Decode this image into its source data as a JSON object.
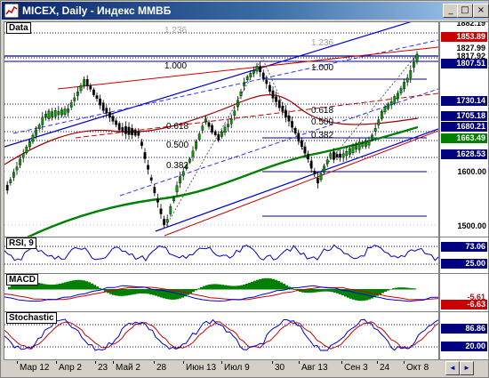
{
  "window": {
    "title": "MICEX, Daily - Индекс ММВБ",
    "controls": {
      "minimize": "_",
      "maximize": "□",
      "close": "×"
    }
  },
  "panes": {
    "price": {
      "label": "Data"
    },
    "rsi": {
      "label": "RSI, 9"
    },
    "macd": {
      "label": "MACD"
    },
    "stochastic": {
      "label": "Stochastic"
    }
  },
  "fib_labels": {
    "top_1236": "1.236",
    "right_1236": "1.236",
    "left_1000": "1.000",
    "right_1000": "1.000",
    "left_0618": "0.618",
    "left_0500": "0.500",
    "left_0382": "0.382",
    "right_0618": "0.618",
    "right_0500": "0.500",
    "right_0382": "0.382"
  },
  "price_axis": {
    "tags": [
      {
        "text": "1882.19",
        "bg": "#ffffff",
        "fg": "#000000"
      },
      {
        "text": "1853.89",
        "bg": "#cc0000",
        "fg": "#ffffff"
      },
      {
        "text": "1827.99",
        "bg": "#ffffff",
        "fg": "#000000"
      },
      {
        "text": "1817.92",
        "bg": "#ffffff",
        "fg": "#000000"
      },
      {
        "text": "1807.51",
        "bg": "#000080",
        "fg": "#ffffff"
      },
      {
        "text": "1730.14",
        "bg": "#000080",
        "fg": "#ffffff"
      },
      {
        "text": "1705.18",
        "bg": "#000080",
        "fg": "#ffffff"
      },
      {
        "text": "1680.21",
        "bg": "#000080",
        "fg": "#ffffff"
      },
      {
        "text": "1663.49",
        "bg": "#008000",
        "fg": "#ffffff"
      },
      {
        "text": "1628.53",
        "bg": "#000080",
        "fg": "#ffffff"
      }
    ],
    "ticks": [
      "1600.00",
      "1500.00"
    ]
  },
  "rsi_axis": {
    "tags": [
      {
        "text": "73.06",
        "bg": "#000080",
        "fg": "#ffffff"
      },
      {
        "text": "25.00",
        "bg": "#000080",
        "fg": "#ffffff"
      }
    ]
  },
  "macd_axis": {
    "tags": [
      {
        "text": "-5.61",
        "bg": "#ffffff",
        "fg": "#cc0000"
      },
      {
        "text": "-6.63",
        "bg": "#cc0000",
        "fg": "#ffffff"
      }
    ]
  },
  "stoch_axis": {
    "tags": [
      {
        "text": "86.86",
        "bg": "#000080",
        "fg": "#ffffff"
      },
      {
        "text": "20.00",
        "bg": "#000080",
        "fg": "#ffffff"
      }
    ]
  },
  "time_axis": {
    "labels": [
      "Мар 12",
      "Апр 2",
      "23",
      "Май 2",
      "28",
      "Июн 13",
      "Июл 9",
      "30",
      "Авг 13",
      "Сен 3",
      "24",
      "Окт 8"
    ]
  },
  "scroll": {
    "left": "◄",
    "right": "►"
  },
  "colors": {
    "up_candle": "#00a000",
    "down_candle": "#000000",
    "ma_green": "#008000",
    "channel_blue": "#0000cc",
    "fib_red": "#cc0000",
    "macd_hist": "#008000"
  }
}
